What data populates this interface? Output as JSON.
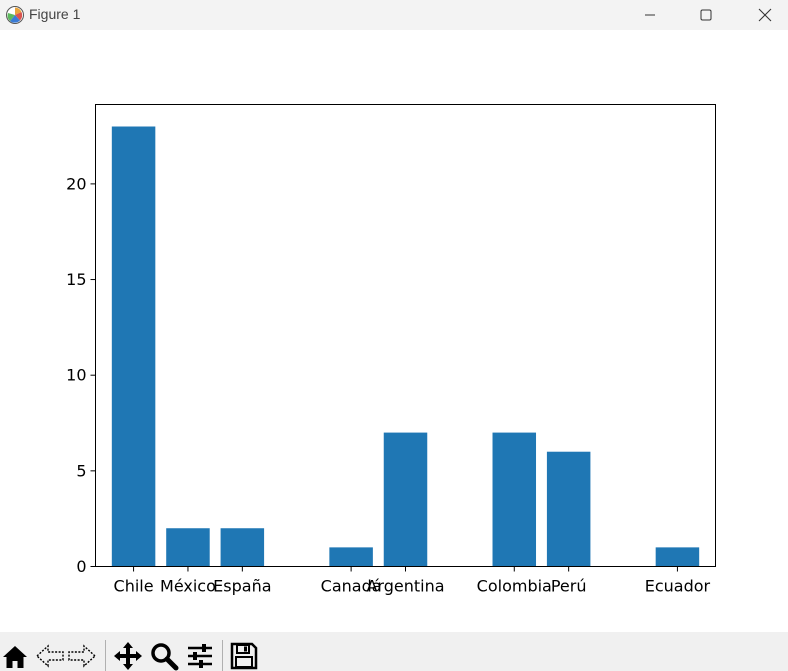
{
  "window": {
    "title": "Figure 1",
    "minimize_icon": "minimize-icon",
    "maximize_icon": "maximize-icon",
    "close_icon": "close-icon"
  },
  "chart_data": {
    "type": "bar",
    "categories": [
      "Chile",
      "México",
      "España",
      "Canadá",
      "Argentina",
      "Colombia",
      "Perú",
      "Ecuador"
    ],
    "x": [
      0,
      1,
      2,
      4,
      5,
      7,
      8,
      10
    ],
    "values": [
      23,
      2,
      2,
      1,
      7,
      7,
      6,
      1
    ],
    "title": "",
    "xlabel": "",
    "ylabel": "",
    "ylim": [
      0,
      24.15
    ],
    "yticks": [
      0,
      5,
      10,
      15,
      20
    ],
    "bar_color": "#1f77b4",
    "grid": false
  },
  "toolbar": {
    "icons": [
      "home-icon",
      "back-icon",
      "forward-icon",
      "pan-icon",
      "zoom-icon",
      "configure-icon",
      "save-icon"
    ]
  }
}
